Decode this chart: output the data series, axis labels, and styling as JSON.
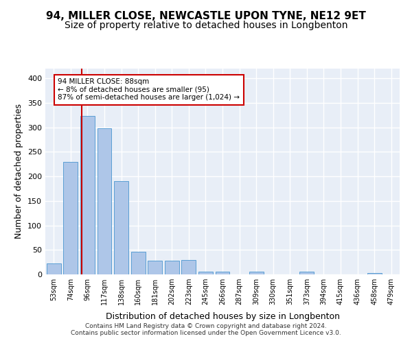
{
  "title1": "94, MILLER CLOSE, NEWCASTLE UPON TYNE, NE12 9ET",
  "title2": "Size of property relative to detached houses in Longbenton",
  "xlabel": "Distribution of detached houses by size in Longbenton",
  "ylabel": "Number of detached properties",
  "bin_labels": [
    "53sqm",
    "74sqm",
    "96sqm",
    "117sqm",
    "138sqm",
    "160sqm",
    "181sqm",
    "202sqm",
    "223sqm",
    "245sqm",
    "266sqm",
    "287sqm",
    "309sqm",
    "330sqm",
    "351sqm",
    "373sqm",
    "394sqm",
    "415sqm",
    "436sqm",
    "458sqm",
    "479sqm"
  ],
  "bar_values": [
    22,
    230,
    323,
    298,
    190,
    46,
    28,
    28,
    29,
    5,
    6,
    0,
    5,
    0,
    0,
    5,
    0,
    0,
    0,
    3,
    0
  ],
  "bar_color": "#aec6e8",
  "bar_edgecolor": "#5a9fd4",
  "bg_color": "#e8eef7",
  "grid_color": "#ffffff",
  "vline_pos": 1.64,
  "vline_color": "#cc0000",
  "annotation_text": "94 MILLER CLOSE: 88sqm\n← 8% of detached houses are smaller (95)\n87% of semi-detached houses are larger (1,024) →",
  "annotation_box_color": "#cc0000",
  "ylim": [
    0,
    420
  ],
  "yticks": [
    0,
    50,
    100,
    150,
    200,
    250,
    300,
    350,
    400
  ],
  "footer": "Contains HM Land Registry data © Crown copyright and database right 2024.\nContains public sector information licensed under the Open Government Licence v3.0.",
  "title1_fontsize": 11,
  "title2_fontsize": 10,
  "ylabel_fontsize": 9,
  "xlabel_fontsize": 9
}
